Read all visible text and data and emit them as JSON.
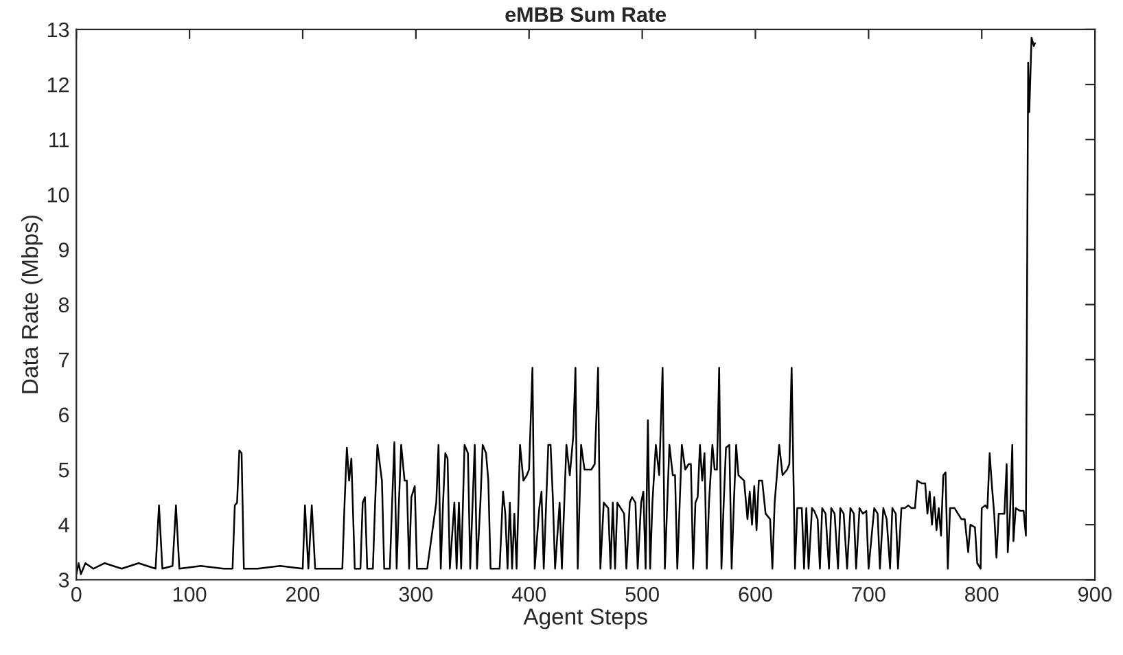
{
  "chart_data": {
    "type": "line",
    "title": "eMBB Sum Rate",
    "xlabel": "Agent Steps",
    "ylabel": "Data Rate (Mbps)",
    "xlim": [
      0,
      900
    ],
    "ylim": [
      3,
      13
    ],
    "xticks": [
      0,
      100,
      200,
      300,
      400,
      500,
      600,
      700,
      800,
      900
    ],
    "yticks": [
      3,
      4,
      5,
      6,
      7,
      8,
      9,
      10,
      11,
      12,
      13
    ],
    "grid": false,
    "marker": "none",
    "line_style": "solid",
    "series": [
      {
        "color": "#000000",
        "x": [
          0,
          2,
          4,
          8,
          15,
          25,
          40,
          55,
          70,
          73,
          76,
          85,
          88,
          91,
          110,
          130,
          138,
          140,
          142,
          144,
          146,
          148,
          160,
          180,
          200,
          202,
          205,
          208,
          211,
          235,
          237,
          239,
          241,
          243,
          246,
          251,
          253,
          255,
          257,
          262,
          264,
          266,
          270,
          272,
          277,
          279,
          281,
          283,
          285,
          287,
          290,
          292,
          294,
          296,
          299,
          301,
          310,
          318,
          320,
          322,
          324,
          326,
          328,
          330,
          334,
          336,
          338,
          340,
          343,
          346,
          348,
          352,
          354,
          357,
          359,
          362,
          364,
          366,
          374,
          377,
          379,
          381,
          383,
          385,
          387,
          389,
          392,
          395,
          398,
          400,
          403,
          405,
          409,
          411,
          413,
          417,
          419,
          421,
          423,
          427,
          429,
          433,
          436,
          439,
          441,
          443,
          446,
          449,
          452,
          455,
          458,
          461,
          463,
          466,
          470,
          472,
          474,
          476,
          478,
          481,
          484,
          486,
          489,
          491,
          494,
          496,
          499,
          501,
          503,
          505,
          507,
          509,
          512,
          515,
          518,
          520,
          524,
          527,
          529,
          531,
          535,
          538,
          541,
          543,
          545,
          547,
          549,
          551,
          553,
          555,
          557,
          559,
          562,
          564,
          566,
          568,
          570,
          572,
          574,
          577,
          579,
          581,
          583,
          585,
          590,
          593,
          595,
          597,
          599,
          601,
          603,
          606,
          609,
          613,
          615,
          617,
          619,
          621,
          624,
          628,
          630,
          632,
          635,
          637,
          641,
          643,
          645,
          647,
          650,
          652,
          655,
          657,
          659,
          662,
          665,
          667,
          670,
          673,
          675,
          678,
          681,
          684,
          687,
          689,
          692,
          695,
          698,
          700,
          705,
          708,
          710,
          713,
          716,
          719,
          721,
          724,
          726,
          729,
          732,
          735,
          738,
          741,
          743,
          747,
          750,
          752,
          754,
          756,
          758,
          760,
          762,
          764,
          766,
          768,
          770,
          772,
          776,
          779,
          782,
          785,
          788,
          790,
          794,
          796,
          799,
          800,
          803,
          805,
          807,
          809,
          811,
          813,
          815,
          818,
          820,
          822,
          823,
          825,
          827,
          828,
          830,
          834,
          837,
          839,
          841,
          842,
          844,
          846,
          847
        ],
        "values": [
          3.1,
          3.3,
          3.1,
          3.3,
          3.2,
          3.3,
          3.2,
          3.3,
          3.2,
          4.35,
          3.2,
          3.25,
          4.35,
          3.2,
          3.25,
          3.2,
          3.2,
          4.35,
          4.4,
          5.35,
          5.3,
          3.2,
          3.2,
          3.25,
          3.2,
          4.35,
          3.2,
          4.35,
          3.2,
          3.2,
          4.4,
          5.4,
          4.8,
          5.2,
          3.2,
          3.2,
          4.4,
          4.5,
          3.2,
          3.2,
          4.4,
          5.45,
          4.8,
          3.2,
          3.2,
          4.4,
          5.5,
          3.2,
          4.4,
          5.45,
          4.8,
          4.8,
          3.2,
          4.5,
          4.7,
          3.2,
          3.2,
          4.4,
          5.45,
          3.2,
          4.4,
          5.3,
          5.2,
          3.2,
          4.4,
          3.2,
          4.4,
          3.2,
          5.45,
          5.3,
          3.2,
          5.45,
          3.2,
          4.4,
          5.45,
          5.3,
          4.8,
          3.2,
          3.2,
          4.6,
          4.2,
          3.2,
          4.4,
          3.2,
          4.2,
          3.2,
          5.45,
          4.8,
          4.9,
          5.0,
          6.85,
          3.2,
          4.3,
          4.6,
          3.2,
          5.45,
          5.45,
          4.5,
          3.2,
          4.4,
          3.2,
          5.45,
          4.9,
          5.6,
          6.85,
          3.2,
          5.45,
          5.0,
          5.0,
          5.0,
          5.1,
          6.85,
          3.2,
          4.4,
          4.3,
          3.2,
          4.4,
          3.2,
          4.4,
          4.3,
          4.2,
          3.2,
          4.4,
          4.5,
          4.4,
          3.2,
          4.4,
          4.6,
          3.2,
          5.9,
          3.2,
          4.4,
          5.45,
          4.9,
          6.85,
          3.2,
          5.45,
          4.9,
          4.9,
          3.2,
          5.45,
          5.0,
          5.1,
          5.1,
          3.2,
          4.4,
          4.5,
          5.45,
          4.8,
          5.3,
          3.2,
          4.4,
          5.45,
          5.0,
          5.0,
          6.85,
          3.2,
          4.4,
          5.4,
          5.45,
          3.2,
          4.4,
          5.45,
          4.9,
          4.8,
          4.1,
          4.6,
          4.0,
          4.7,
          3.9,
          4.8,
          4.8,
          4.2,
          4.1,
          3.2,
          4.4,
          4.9,
          5.45,
          4.9,
          5.0,
          5.1,
          6.85,
          3.2,
          4.3,
          4.3,
          3.2,
          4.3,
          3.2,
          4.3,
          4.25,
          4.1,
          3.2,
          4.3,
          4.2,
          3.2,
          4.3,
          4.2,
          3.2,
          4.3,
          4.2,
          3.2,
          4.3,
          4.2,
          3.2,
          4.3,
          4.2,
          4.25,
          3.2,
          4.3,
          4.2,
          3.2,
          4.3,
          4.1,
          3.2,
          4.3,
          4.2,
          3.2,
          4.3,
          4.3,
          4.35,
          4.3,
          4.3,
          4.8,
          4.75,
          4.75,
          4.2,
          4.6,
          4.0,
          4.5,
          3.9,
          4.3,
          3.8,
          4.9,
          4.95,
          3.2,
          4.3,
          4.3,
          4.2,
          4.1,
          4.1,
          3.5,
          4.0,
          3.95,
          3.3,
          3.2,
          4.3,
          4.35,
          4.3,
          5.3,
          4.7,
          4.2,
          3.4,
          4.2,
          4.2,
          4.2,
          5.1,
          3.5,
          4.2,
          5.45,
          3.7,
          4.3,
          4.25,
          4.25,
          3.8,
          12.4,
          11.5,
          12.85,
          12.7,
          12.75
        ]
      }
    ]
  }
}
